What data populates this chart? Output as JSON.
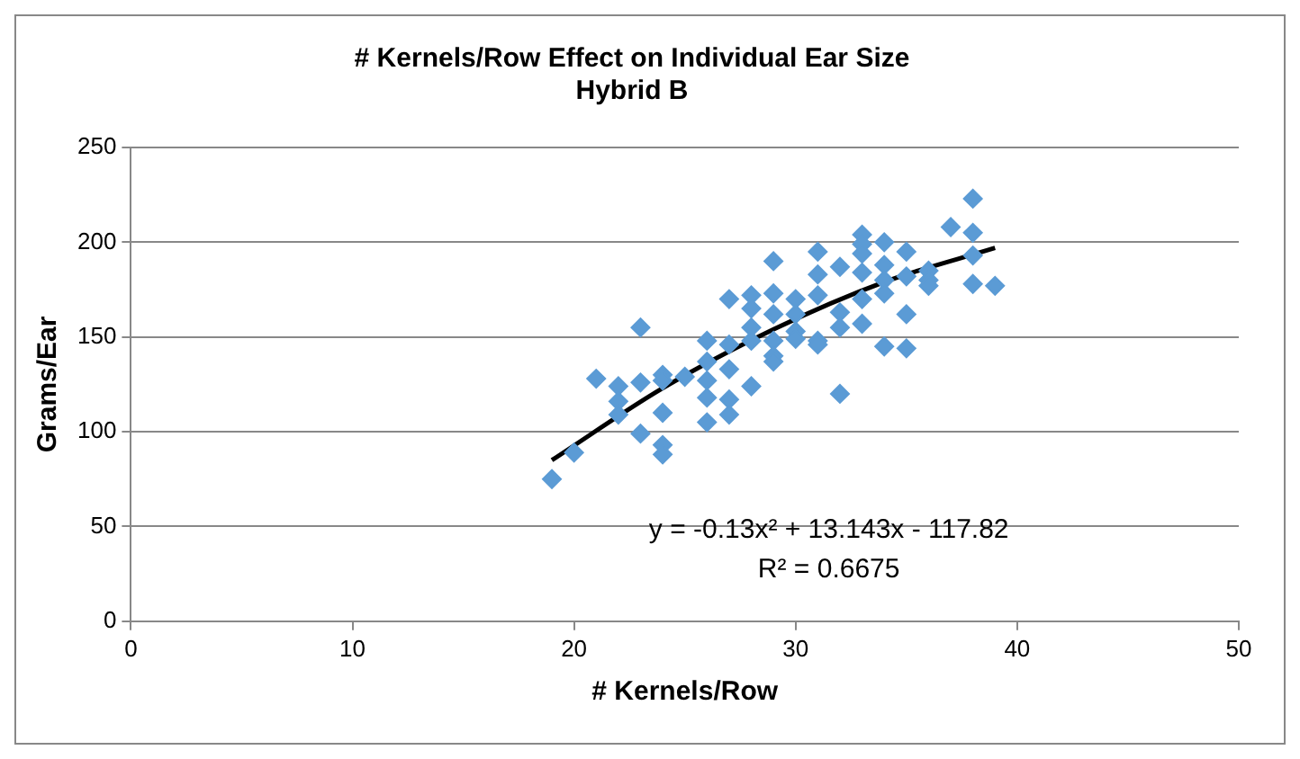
{
  "chart_data": {
    "type": "scatter",
    "title": "# Kernels/Row Effect on Individual Ear Size",
    "subtitle": "Hybrid B",
    "xlabel": "# Kernels/Row",
    "ylabel": "Grams/Ear",
    "xlim": [
      0,
      50
    ],
    "xticks": [
      0,
      10,
      20,
      30,
      40,
      50
    ],
    "ylim": [
      0,
      250
    ],
    "yticks": [
      0,
      50,
      100,
      150,
      200,
      250
    ],
    "grid": "y",
    "legend": false,
    "marker": "diamond",
    "series": [
      {
        "type": "scatter",
        "color": "#5b9bd5",
        "x": [
          19,
          20,
          21,
          22,
          22,
          22,
          23,
          23,
          23,
          24,
          24,
          24,
          24,
          24,
          25,
          26,
          26,
          26,
          26,
          26,
          27,
          27,
          27,
          27,
          27,
          28,
          28,
          28,
          28,
          28,
          29,
          29,
          29,
          29,
          29,
          29,
          30,
          30,
          30,
          30,
          31,
          31,
          31,
          31,
          31,
          32,
          32,
          32,
          32,
          33,
          33,
          33,
          33,
          33,
          33,
          34,
          34,
          34,
          34,
          34,
          35,
          35,
          35,
          35,
          36,
          36,
          36,
          37,
          38,
          38,
          38,
          38,
          39
        ],
        "values": [
          75,
          89,
          128,
          124,
          116,
          109,
          155,
          126,
          99,
          130,
          127,
          110,
          93,
          88,
          129,
          148,
          137,
          127,
          118,
          105,
          170,
          146,
          133,
          117,
          109,
          172,
          165,
          155,
          148,
          124,
          190,
          173,
          162,
          148,
          140,
          137,
          170,
          162,
          153,
          149,
          195,
          183,
          172,
          148,
          146,
          187,
          163,
          155,
          120,
          204,
          199,
          194,
          184,
          170,
          157,
          200,
          188,
          180,
          173,
          145,
          195,
          182,
          162,
          144,
          185,
          180,
          177,
          208,
          223,
          205,
          193,
          178,
          177
        ]
      },
      {
        "type": "line",
        "color": "#000000",
        "marker": "none",
        "x": [
          19,
          24,
          29,
          34,
          39
        ],
        "values": [
          85,
          123,
          154,
          179,
          197
        ]
      }
    ],
    "annotations": [
      "y = -0.13x² + 13.143x - 117.82",
      "R² = 0.6675"
    ]
  }
}
